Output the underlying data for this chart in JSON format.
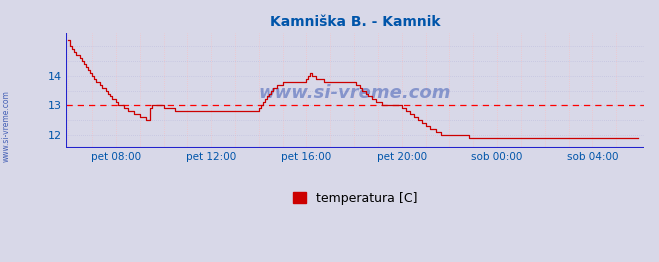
{
  "title": "Kamniška B. - Kamnik",
  "title_color": "#0055aa",
  "bg_color": "#d8d8e8",
  "plot_bg_color": "#d8d8e8",
  "line_color": "#cc0000",
  "grid_color_v": "#ffbbbb",
  "grid_color_h": "#bbbbdd",
  "hline_value": 13.0,
  "hline_color": "#ff0000",
  "ylabel_color": "#0055aa",
  "xlabel_color": "#0055aa",
  "axis_color": "#2222cc",
  "ylim_min": 11.55,
  "ylim_max": 15.45,
  "yticks": [
    12,
    13,
    14
  ],
  "xtick_labels": [
    "pet 08:00",
    "pet 12:00",
    "pet 16:00",
    "pet 20:00",
    "sob 00:00",
    "sob 04:00"
  ],
  "legend_label": "temperatura [C]",
  "legend_color": "#cc0000",
  "watermark_text": "www.si-vreme.com",
  "watermark_color": "#2244aa",
  "sidebar_text": "www.si-vreme.com",
  "sidebar_color": "#2244aa",
  "temperatures": [
    15.2,
    15.0,
    14.9,
    14.8,
    14.7,
    14.7,
    14.6,
    14.5,
    14.4,
    14.3,
    14.2,
    14.1,
    14.0,
    13.9,
    13.8,
    13.8,
    13.7,
    13.6,
    13.6,
    13.5,
    13.4,
    13.3,
    13.2,
    13.2,
    13.1,
    13.0,
    13.0,
    13.0,
    12.9,
    12.9,
    12.8,
    12.8,
    12.8,
    12.7,
    12.7,
    12.7,
    12.6,
    12.6,
    12.6,
    12.5,
    12.5,
    12.9,
    13.0,
    13.0,
    13.0,
    13.0,
    13.0,
    13.0,
    12.9,
    12.9,
    12.9,
    12.9,
    12.9,
    12.9,
    12.8,
    12.8,
    12.8,
    12.8,
    12.8,
    12.8,
    12.8,
    12.8,
    12.8,
    12.8,
    12.8,
    12.8,
    12.8,
    12.8,
    12.8,
    12.8,
    12.8,
    12.8,
    12.8,
    12.8,
    12.8,
    12.8,
    12.8,
    12.8,
    12.8,
    12.8,
    12.8,
    12.8,
    12.8,
    12.8,
    12.8,
    12.8,
    12.8,
    12.8,
    12.8,
    12.8,
    12.8,
    12.8,
    12.8,
    12.8,
    12.8,
    12.8,
    12.9,
    13.0,
    13.1,
    13.2,
    13.3,
    13.4,
    13.5,
    13.6,
    13.6,
    13.7,
    13.7,
    13.7,
    13.8,
    13.8,
    13.8,
    13.8,
    13.8,
    13.8,
    13.8,
    13.8,
    13.8,
    13.8,
    13.8,
    13.8,
    13.9,
    14.0,
    14.1,
    14.0,
    14.0,
    13.9,
    13.9,
    13.9,
    13.9,
    13.8,
    13.8,
    13.8,
    13.8,
    13.8,
    13.8,
    13.8,
    13.8,
    13.8,
    13.8,
    13.8,
    13.8,
    13.8,
    13.8,
    13.8,
    13.8,
    13.7,
    13.7,
    13.6,
    13.5,
    13.5,
    13.4,
    13.3,
    13.3,
    13.2,
    13.2,
    13.1,
    13.1,
    13.1,
    13.0,
    13.0,
    13.0,
    13.0,
    13.0,
    13.0,
    13.0,
    13.0,
    13.0,
    13.0,
    12.9,
    12.9,
    12.8,
    12.8,
    12.7,
    12.7,
    12.6,
    12.6,
    12.5,
    12.5,
    12.4,
    12.4,
    12.3,
    12.3,
    12.2,
    12.2,
    12.2,
    12.1,
    12.1,
    12.1,
    12.0,
    12.0,
    12.0,
    12.0,
    12.0,
    12.0,
    12.0,
    12.0,
    12.0,
    12.0,
    12.0,
    12.0,
    12.0,
    12.0,
    11.9,
    11.9,
    11.9,
    11.9,
    11.9,
    11.9,
    11.9,
    11.9,
    11.9,
    11.9,
    11.9,
    11.9,
    11.9,
    11.9,
    11.9,
    11.9,
    11.9,
    11.9,
    11.9,
    11.9,
    11.9,
    11.9,
    11.9,
    11.9,
    11.9,
    11.9,
    11.9,
    11.9,
    11.9,
    11.9,
    11.9,
    11.9,
    11.9,
    11.9,
    11.9,
    11.9,
    11.9,
    11.9,
    11.9,
    11.9,
    11.9,
    11.9,
    11.9,
    11.9,
    11.9,
    11.9,
    11.9,
    11.9,
    11.9,
    11.9,
    11.9,
    11.9,
    11.9,
    11.9,
    11.9,
    11.9,
    11.9,
    11.9,
    11.9,
    11.9,
    11.9,
    11.9,
    11.9,
    11.9,
    11.9,
    11.9,
    11.9,
    11.9,
    11.9,
    11.9,
    11.9,
    11.9,
    11.9,
    11.9,
    11.9,
    11.9,
    11.9,
    11.9,
    11.9,
    11.9,
    11.9,
    11.9,
    11.9,
    11.9,
    11.9,
    11.9
  ]
}
